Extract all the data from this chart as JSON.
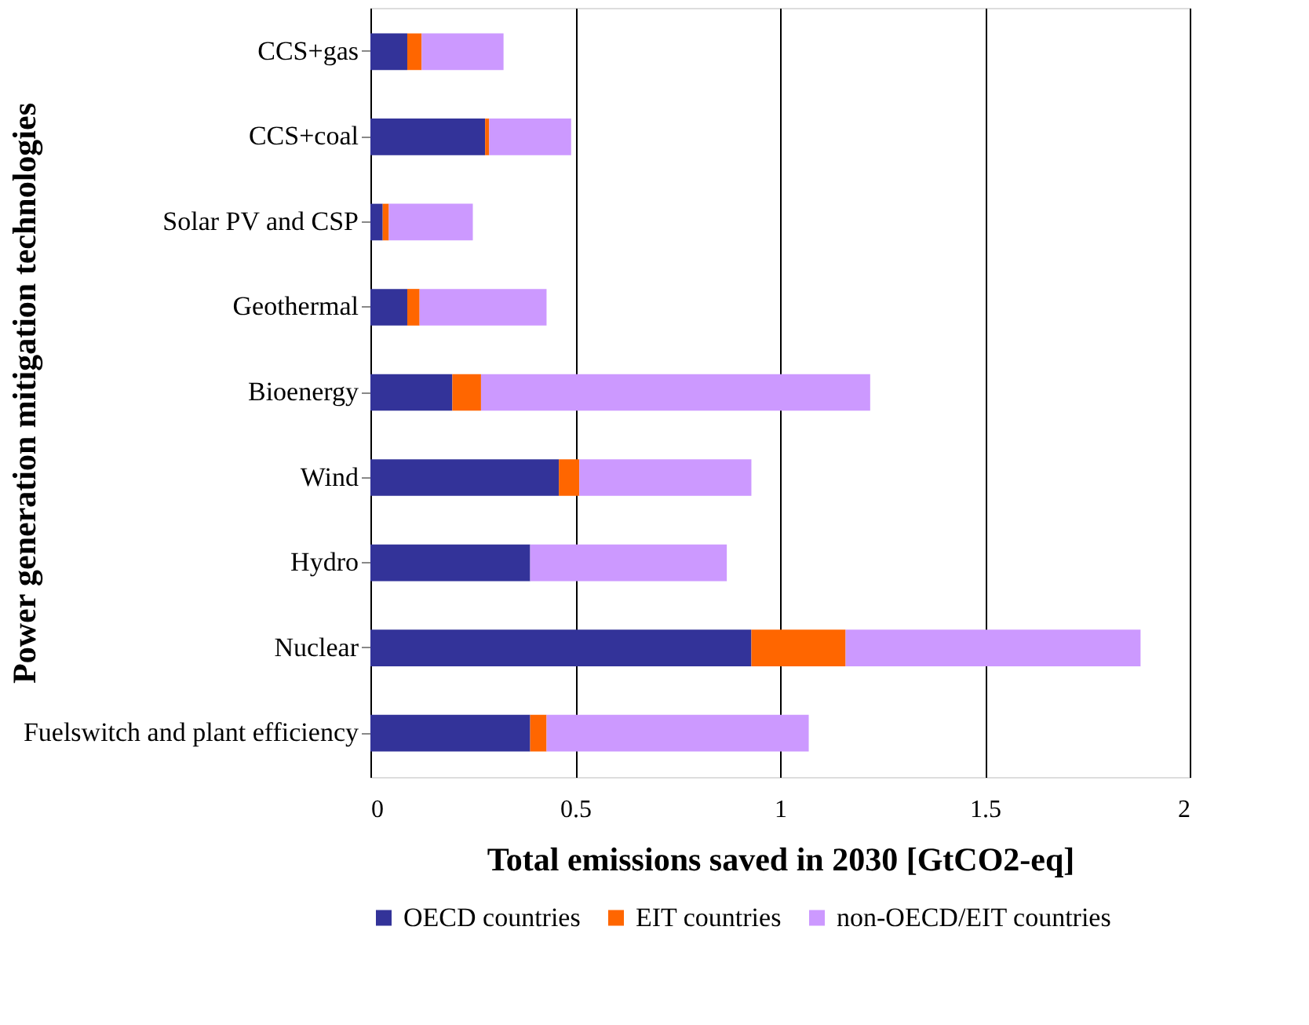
{
  "chart_data": {
    "type": "bar",
    "orientation": "horizontal",
    "stacked": true,
    "xlabel": "Total emissions saved in 2030 [GtCO2-eq]",
    "ylabel": "Power generation mitigation technologies",
    "categories": [
      "CCS+gas",
      "CCS+coal",
      "Solar PV and CSP",
      "Geothermal",
      "Bioenergy",
      "Wind",
      "Hydro",
      "Nuclear",
      "Fuelswitch and plant efficiency"
    ],
    "series": [
      {
        "name": "OECD countries",
        "color": "#333399",
        "values": [
          0.09,
          0.28,
          0.03,
          0.09,
          0.2,
          0.46,
          0.39,
          0.93,
          0.39
        ]
      },
      {
        "name": "EIT countries",
        "color": "#ff6600",
        "values": [
          0.035,
          0.01,
          0.015,
          0.03,
          0.07,
          0.05,
          0.0,
          0.23,
          0.04
        ]
      },
      {
        "name": "non-OECD/EIT countries",
        "color": "#cc99ff",
        "values": [
          0.2,
          0.2,
          0.205,
          0.31,
          0.95,
          0.42,
          0.48,
          0.72,
          0.64
        ]
      }
    ],
    "xlim": [
      0,
      2
    ],
    "xticks": [
      0,
      0.5,
      1,
      1.5,
      2
    ],
    "grid": "x",
    "legend": "bottom"
  }
}
